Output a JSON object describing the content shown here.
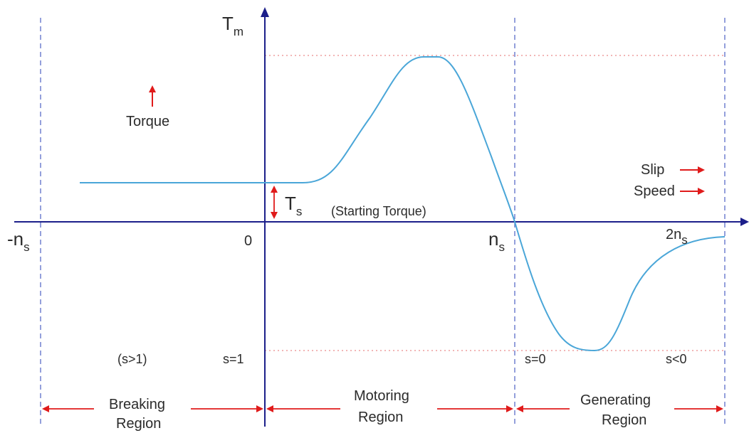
{
  "colors": {
    "axis": "#1c1f8a",
    "curve": "#4aa6d8",
    "guide": "#5b6cc8",
    "arrow": "#e01b1b",
    "dotted": "#e98a8a",
    "text": "#2b2b2b"
  },
  "axis_labels": {
    "y_main": "T",
    "y_sub": "m"
  },
  "x_ticks": {
    "neg_ns_main": "-n",
    "neg_ns_sub": "s",
    "zero": "0",
    "ns_main": "n",
    "ns_sub": "s",
    "two_ns_main": "2n",
    "two_ns_sub": "s"
  },
  "torque_note": "Torque",
  "legend": {
    "slip": "Slip",
    "speed": "Speed"
  },
  "starting_torque": {
    "symbol_main": "T",
    "symbol_sub": "s",
    "label": "(Starting Torque)"
  },
  "slip_labels": {
    "gt1": "(s>1)",
    "eq1": "s=1",
    "eq0": "s=0",
    "lt0": "s<0"
  },
  "regions": {
    "braking_line1": "Breaking",
    "braking_line2": "Region",
    "motoring_line1": "Motoring",
    "motoring_line2": "Region",
    "generating_line1": "Generating",
    "generating_line2": "Region"
  }
}
